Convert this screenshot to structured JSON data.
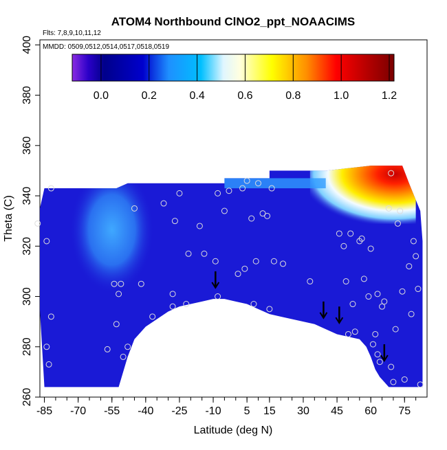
{
  "chart_data": {
    "type": "heatmap",
    "title": "ATOM4 Northbound ClNO2_ppt_NOAACIMS",
    "subtitle_flights": "Flts: 7,8,9,10,11,12",
    "subtitle_dates": "MMDD: 0509,0512,0514,0517,0518,0519",
    "xlabel": "Latitude (deg N)",
    "ylabel": "Theta (C)",
    "xlim": [
      -87,
      85
    ],
    "ylim": [
      260,
      402
    ],
    "xticks": [
      "-85",
      "-70",
      "-55",
      "-40",
      "-25",
      "-10",
      "5",
      "15",
      "30",
      "45",
      "60",
      "75"
    ],
    "xtick_values": [
      -85,
      -70,
      -55,
      -40,
      -25,
      -10,
      5,
      15,
      30,
      45,
      60,
      75
    ],
    "yticks": [
      "260",
      "280",
      "300",
      "320",
      "340",
      "360",
      "380",
      "400"
    ],
    "ytick_values": [
      260,
      280,
      300,
      320,
      340,
      360,
      380,
      400
    ],
    "colorbar": {
      "range": [
        -0.12,
        1.22
      ],
      "ticks": [
        "0.0",
        "0.2",
        "0.4",
        "0.6",
        "0.8",
        "1.0",
        "1.2"
      ],
      "tick_values": [
        0.0,
        0.2,
        0.4,
        0.6,
        0.8,
        1.0,
        1.2
      ],
      "colors": [
        "#8a2be2",
        "#00008b",
        "#0000cd",
        "#1e90ff",
        "#00bfff",
        "#e0f6ff",
        "#ffffe0",
        "#ffff00",
        "#ff8c00",
        "#ff0000",
        "#b30000",
        "#8b0000"
      ]
    },
    "field_color": "#1a1ad6",
    "hotspot": {
      "lat": 66,
      "theta": 348,
      "value": 1.2
    },
    "warm_band": {
      "lat_range": [
        33,
        80
      ],
      "theta_range": [
        336,
        351
      ],
      "value": 0.8
    },
    "light_region": {
      "lat_range": [
        -70,
        -40
      ],
      "theta_range": [
        310,
        343
      ],
      "value": 0.35
    },
    "ground_profile": [
      [
        -52,
        264
      ],
      [
        -50,
        270
      ],
      [
        -48,
        276
      ],
      [
        -45,
        283
      ],
      [
        -40,
        288
      ],
      [
        -35,
        291
      ],
      [
        -30,
        294
      ],
      [
        -25,
        296
      ],
      [
        -20,
        297
      ],
      [
        -15,
        298
      ],
      [
        -10,
        299
      ],
      [
        -5,
        299
      ],
      [
        0,
        298
      ],
      [
        5,
        297
      ],
      [
        10,
        295
      ],
      [
        15,
        293
      ],
      [
        20,
        292
      ],
      [
        25,
        291
      ],
      [
        30,
        290
      ],
      [
        35,
        289
      ],
      [
        40,
        287
      ],
      [
        45,
        285
      ],
      [
        50,
        284
      ],
      [
        55,
        283
      ],
      [
        58,
        280
      ],
      [
        60,
        276
      ],
      [
        62,
        271
      ],
      [
        64,
        268
      ],
      [
        66,
        266
      ],
      [
        68,
        264
      ]
    ],
    "data_points": [
      [
        -88,
        329
      ],
      [
        -84,
        322
      ],
      [
        -82,
        343
      ],
      [
        -84,
        280
      ],
      [
        -83,
        273
      ],
      [
        -82,
        292
      ],
      [
        -57,
        279
      ],
      [
        -53,
        289
      ],
      [
        -54,
        305
      ],
      [
        -52,
        301
      ],
      [
        -51,
        305
      ],
      [
        -50,
        276
      ],
      [
        -48,
        280
      ],
      [
        -45,
        335
      ],
      [
        -42,
        305
      ],
      [
        -37,
        292
      ],
      [
        -32,
        337
      ],
      [
        -28,
        301
      ],
      [
        -28,
        296
      ],
      [
        -27,
        330
      ],
      [
        -25,
        341
      ],
      [
        -22,
        297
      ],
      [
        -21,
        317
      ],
      [
        -16,
        328
      ],
      [
        -14,
        317
      ],
      [
        -9,
        314
      ],
      [
        -8,
        300
      ],
      [
        -8,
        341
      ],
      [
        -5,
        334
      ],
      [
        -3,
        342
      ],
      [
        1,
        309
      ],
      [
        3,
        343
      ],
      [
        4,
        311
      ],
      [
        5,
        346
      ],
      [
        7,
        331
      ],
      [
        8,
        297
      ],
      [
        9,
        314
      ],
      [
        10,
        345
      ],
      [
        12,
        333
      ],
      [
        14,
        332
      ],
      [
        15,
        295
      ],
      [
        16,
        343
      ],
      [
        17,
        314
      ],
      [
        21,
        313
      ],
      [
        33,
        306
      ],
      [
        46,
        325
      ],
      [
        48,
        320
      ],
      [
        49,
        306
      ],
      [
        50,
        285
      ],
      [
        51,
        325
      ],
      [
        52,
        297
      ],
      [
        53,
        286
      ],
      [
        55,
        322
      ],
      [
        56,
        323
      ],
      [
        57,
        307
      ],
      [
        59,
        300
      ],
      [
        60,
        319
      ],
      [
        61,
        281
      ],
      [
        62,
        285
      ],
      [
        63,
        277
      ],
      [
        63,
        301
      ],
      [
        64,
        274
      ],
      [
        65,
        296
      ],
      [
        66,
        298
      ],
      [
        68,
        335
      ],
      [
        69,
        272
      ],
      [
        70,
        266
      ],
      [
        71,
        287
      ],
      [
        72,
        329
      ],
      [
        73,
        334
      ],
      [
        74,
        302
      ],
      [
        75,
        267
      ],
      [
        77,
        312
      ],
      [
        78,
        293
      ],
      [
        79,
        322
      ],
      [
        80,
        316
      ],
      [
        81,
        303
      ],
      [
        82,
        265
      ],
      [
        69,
        349
      ]
    ],
    "markers": [
      {
        "lat": -9,
        "theta": 304,
        "label": "arrow"
      },
      {
        "lat": 39,
        "theta": 292,
        "label": "arrow"
      },
      {
        "lat": 46,
        "theta": 290,
        "label": "arrow"
      },
      {
        "lat": 66,
        "theta": 275,
        "label": "arrow"
      }
    ]
  }
}
